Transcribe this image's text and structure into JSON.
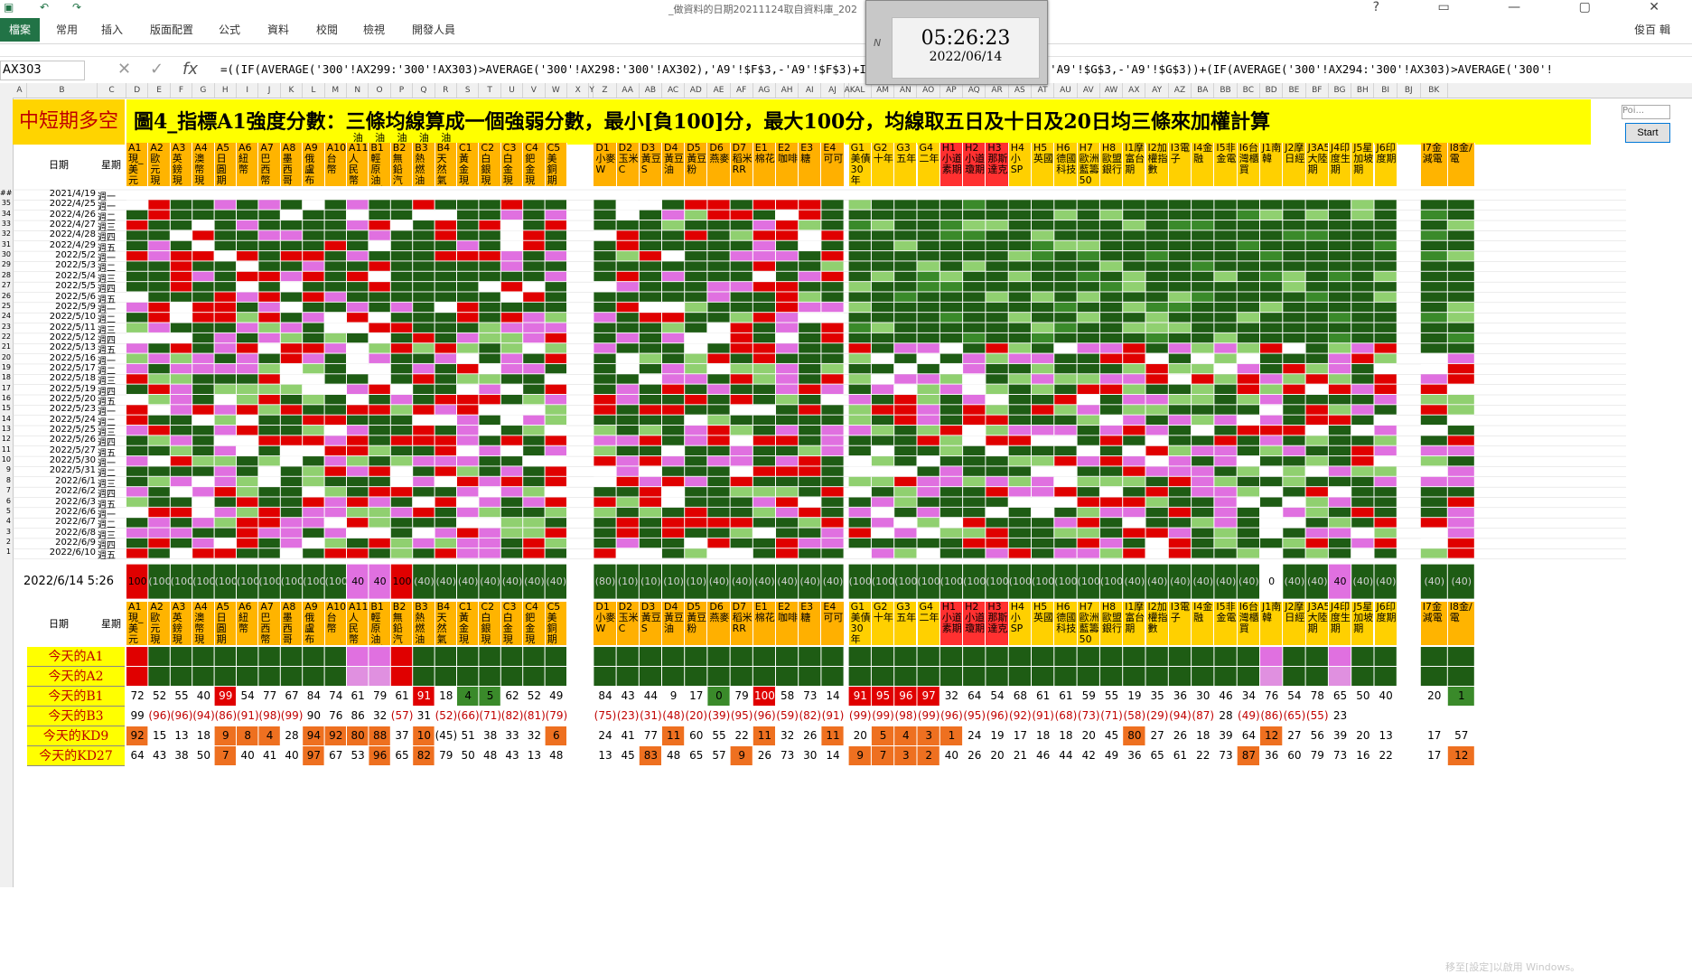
{
  "window": {
    "doc_title": "_做資料的日期20211124取自資料庫_202",
    "qa_icons": [
      "save-icon",
      "undo-icon",
      "redo-icon"
    ],
    "user": "俊百 輯"
  },
  "ribbon": {
    "file_tab": "檔案",
    "tabs": [
      "常用",
      "插入",
      "版面配置",
      "公式",
      "資料",
      "校閱",
      "檢視",
      "開發人員"
    ]
  },
  "formula_bar": {
    "name_box": "AX303",
    "formula": "=((IF(AVERAGE('300'!AX299:'300'!AX303)>AVERAGE('300'!AX298:'300'!AX302),'A9'!$F$3,-'A9'!$F$3)+IF('300'!AX299:'300'!AX303),'A9'!$G$3,-'A9'!$G$3))+(IF(AVERAGE('300'!AX294:'300'!AX303)>AVERAGE('300'!"
  },
  "clock": {
    "time": "05:26:23",
    "date": "2022/06/14"
  },
  "banner": {
    "label": "中短期多空",
    "title": "圖4_指標A1強度分數：三條均線算成一個強弱分數，最小[負100]分，最大100分，均線取五日及十日及20日均三條來加權計算"
  },
  "side_panel": {
    "input_placeholder": "Poi...",
    "start_label": "Start"
  },
  "col_letters": [
    "A",
    "B",
    "C",
    "D",
    "E",
    "F",
    "G",
    "H",
    "I",
    "J",
    "K",
    "L",
    "M",
    "N",
    "O",
    "P",
    "Q",
    "R",
    "S",
    "T",
    "U",
    "V",
    "W",
    "X",
    "Y",
    "Z",
    "AA",
    "AB",
    "AC",
    "AD",
    "AE",
    "AF",
    "AG",
    "AH",
    "AI",
    "AJ",
    "AK",
    "AL",
    "AM",
    "AN",
    "AO",
    "AP",
    "AQ",
    "AR",
    "AS",
    "AT",
    "AU",
    "AV",
    "AW",
    "AX",
    "AY",
    "AZ",
    "BA",
    "BB",
    "BC",
    "BD",
    "BE",
    "BF",
    "BG",
    "BH",
    "BI",
    "BJ",
    "BK"
  ],
  "header_labels": {
    "date": "日期",
    "weekday": "星期"
  },
  "oil_marks": [
    "油",
    "油",
    "油",
    "油",
    "油"
  ],
  "instruments_1": [
    "A1現_美元指",
    "A2歐元現",
    "A3英鎊現",
    "A4澳幣現",
    "A5日圓期",
    "A6紐幣",
    "A7巴西幣",
    "A8墨西哥幣",
    "A9俄盧布",
    "A10台幣",
    "A11人民幣CNY",
    "B1輕原油(美)",
    "B2無鉛汽油RB",
    "B3熱燃油HO",
    "B4天然氣",
    "C1黃金現貨",
    "C2白銀現貨",
    "C3白金現貨XPT",
    "C4鈀金現貨XPD",
    "C5美銅期貨"
  ],
  "instruments_2": [
    "D1小麥W",
    "D2玉米C",
    "D3黃豆S",
    "D4黃豆油",
    "D5黃豆粉",
    "D6燕麥",
    "D7稻米RR",
    "E1棉花",
    "E2咖啡",
    "E3糖",
    "E4可可"
  ],
  "instruments_3": [
    "G1美債30年",
    "G2十年",
    "G3五年",
    "G4二年",
    "H1小道素期",
    "H2小道瓊期",
    "H3那斯達克",
    "H4小SP",
    "H5英國",
    "H6德國科技",
    "H7歐洲藍籌50",
    "H8歐盟銀行",
    "I1摩富台期",
    "I2加權指數",
    "I3電子",
    "I4金融",
    "I5非金電",
    "I6台灣櫃買",
    "J1南韓",
    "J2摩日經",
    "J3A50大陸期",
    "J4印度生期",
    "J5星加坡期",
    "J6印度期"
  ],
  "instruments_4": [
    "I7金減電",
    "I8金/電"
  ],
  "dates": [
    {
      "row": "##",
      "date": "2021/4/19",
      "wd": "週一"
    },
    {
      "row": "35",
      "date": "2022/4/25",
      "wd": "週一"
    },
    {
      "row": "34",
      "date": "2022/4/26",
      "wd": "週二"
    },
    {
      "row": "33",
      "date": "2022/4/27",
      "wd": "週三"
    },
    {
      "row": "32",
      "date": "2022/4/28",
      "wd": "週四"
    },
    {
      "row": "31",
      "date": "2022/4/29",
      "wd": "週五"
    },
    {
      "row": "30",
      "date": "2022/5/2",
      "wd": "週一"
    },
    {
      "row": "29",
      "date": "2022/5/3",
      "wd": "週二"
    },
    {
      "row": "28",
      "date": "2022/5/4",
      "wd": "週三"
    },
    {
      "row": "27",
      "date": "2022/5/5",
      "wd": "週四"
    },
    {
      "row": "26",
      "date": "2022/5/6",
      "wd": "週五"
    },
    {
      "row": "25",
      "date": "2022/5/9",
      "wd": "週一"
    },
    {
      "row": "24",
      "date": "2022/5/10",
      "wd": "週二"
    },
    {
      "row": "23",
      "date": "2022/5/11",
      "wd": "週三"
    },
    {
      "row": "22",
      "date": "2022/5/12",
      "wd": "週四"
    },
    {
      "row": "21",
      "date": "2022/5/13",
      "wd": "週五"
    },
    {
      "row": "20",
      "date": "2022/5/16",
      "wd": "週一"
    },
    {
      "row": "19",
      "date": "2022/5/17",
      "wd": "週二"
    },
    {
      "row": "18",
      "date": "2022/5/18",
      "wd": "週三"
    },
    {
      "row": "17",
      "date": "2022/5/19",
      "wd": "週四"
    },
    {
      "row": "16",
      "date": "2022/5/20",
      "wd": "週五"
    },
    {
      "row": "15",
      "date": "2022/5/23",
      "wd": "週一"
    },
    {
      "row": "14",
      "date": "2022/5/24",
      "wd": "週二"
    },
    {
      "row": "13",
      "date": "2022/5/25",
      "wd": "週三"
    },
    {
      "row": "12",
      "date": "2022/5/26",
      "wd": "週四"
    },
    {
      "row": "11",
      "date": "2022/5/27",
      "wd": "週五"
    },
    {
      "row": "10",
      "date": "2022/5/30",
      "wd": "週一"
    },
    {
      "row": "9",
      "date": "2022/5/31",
      "wd": "週二"
    },
    {
      "row": "8",
      "date": "2022/6/1",
      "wd": "週三"
    },
    {
      "row": "7",
      "date": "2022/6/2",
      "wd": "週四"
    },
    {
      "row": "6",
      "date": "2022/6/3",
      "wd": "週五"
    },
    {
      "row": "5",
      "date": "2022/6/6",
      "wd": "週一"
    },
    {
      "row": "4",
      "date": "2022/6/7",
      "wd": "週二"
    },
    {
      "row": "3",
      "date": "2022/6/8",
      "wd": "週三"
    },
    {
      "row": "2",
      "date": "2022/6/9",
      "wd": "週四"
    },
    {
      "row": "1",
      "date": "2022/6/10",
      "wd": "週五"
    }
  ],
  "current_stamp": "2022/6/14 5:26",
  "current_row": [
    "100",
    "(100)",
    "(100)",
    "(100)",
    "(100)",
    "(100)",
    "(100)",
    "(100)",
    "(100)",
    "(100)",
    "40",
    "40",
    "100",
    "(40)",
    "(40)",
    "(40)",
    "(40)",
    "(40)",
    "(40)",
    "(40)",
    "(80)",
    "(10)",
    "(10)",
    "(10)",
    "(10)",
    "(40)",
    "(40)",
    "(40)",
    "(40)",
    "(40)",
    "(40)",
    "(100)",
    "(100)",
    "(100)",
    "(100)",
    "(100)",
    "(100)",
    "(100)",
    "(100)",
    "(100)",
    "(100)",
    "(100)",
    "(100)",
    "(40)",
    "(40)",
    "(40)",
    "(40)",
    "(40)",
    "(40)",
    "0",
    "(40)",
    "(40)",
    "40",
    "(40)",
    "(40)",
    "(40)",
    "(40)"
  ],
  "bottom_labels": [
    "今天的A1",
    "今天的A2",
    "今天的B1",
    "今天的B3",
    "今天的KD9",
    "今天的KD27"
  ],
  "bottom_rows": {
    "b1": [
      "72",
      "52",
      "55",
      "40",
      "99",
      "54",
      "77",
      "67",
      "84",
      "74",
      "61",
      "79",
      "61",
      "91",
      "18",
      "4",
      "5",
      "62",
      "52",
      "49",
      "84",
      "43",
      "44",
      "9",
      "17",
      "0",
      "79",
      "100",
      "58",
      "73",
      "14",
      "91",
      "95",
      "96",
      "97",
      "32",
      "64",
      "54",
      "68",
      "61",
      "61",
      "59",
      "55",
      "19",
      "35",
      "36",
      "30",
      "46",
      "34",
      "76",
      "54",
      "78",
      "65",
      "50",
      "40",
      "20",
      "1"
    ],
    "b3": [
      "99",
      "(96)",
      "(96)",
      "(94)",
      "(86)",
      "(91)",
      "(98)",
      "(99)",
      "90",
      "76",
      "86",
      "32",
      "(57)",
      "31",
      "(52)",
      "(66)",
      "(71)",
      "(82)",
      "(81)",
      "(79)",
      "(75)",
      "(23)",
      "(31)",
      "(48)",
      "(20)",
      "(39)",
      "(95)",
      "(96)",
      "(59)",
      "(82)",
      "(91)",
      "(99)",
      "(99)",
      "(98)",
      "(99)",
      "(96)",
      "(95)",
      "(96)",
      "(92)",
      "(91)",
      "(68)",
      "(73)",
      "(71)",
      "(58)",
      "(29)",
      "(94)",
      "(87)",
      "28",
      "(49)",
      "(86)",
      "(65)",
      "(55)",
      "23"
    ],
    "kd9": [
      "92",
      "15",
      "13",
      "18",
      "9",
      "8",
      "4",
      "28",
      "94",
      "92",
      "80",
      "88",
      "37",
      "10",
      "(45)",
      "51",
      "38",
      "33",
      "32",
      "6",
      "24",
      "41",
      "77",
      "11",
      "60",
      "55",
      "22",
      "11",
      "32",
      "26",
      "11",
      "20",
      "5",
      "4",
      "3",
      "1",
      "24",
      "19",
      "17",
      "18",
      "18",
      "20",
      "45",
      "80",
      "27",
      "26",
      "18",
      "39",
      "64",
      "12",
      "27",
      "56",
      "39",
      "20",
      "13",
      "17",
      "57"
    ],
    "kd27": [
      "64",
      "43",
      "38",
      "50",
      "7",
      "40",
      "41",
      "40",
      "97",
      "67",
      "53",
      "96",
      "65",
      "82",
      "79",
      "50",
      "48",
      "43",
      "13",
      "48",
      "13",
      "45",
      "83",
      "48",
      "65",
      "57",
      "9",
      "26",
      "73",
      "30",
      "14",
      "9",
      "7",
      "3",
      "2",
      "40",
      "26",
      "20",
      "21",
      "46",
      "44",
      "42",
      "49",
      "36",
      "65",
      "61",
      "22",
      "73",
      "87",
      "36",
      "60",
      "79",
      "73",
      "16",
      "22",
      "17",
      "12"
    ]
  },
  "colors": {
    "excel_green": "#217346",
    "dark_green": "#1e5c14",
    "red": "#e00000",
    "pink": "#e070e0",
    "light_green": "#90d070",
    "mid_green": "#3a8a2a",
    "white": "#ffffff",
    "header_orange": "#ffb400",
    "header_yellow": "#ffd700",
    "banner_yellow": "#ffff00",
    "orange": "#ee7020"
  },
  "watermark": "移至[設定]以啟用 Windows。"
}
